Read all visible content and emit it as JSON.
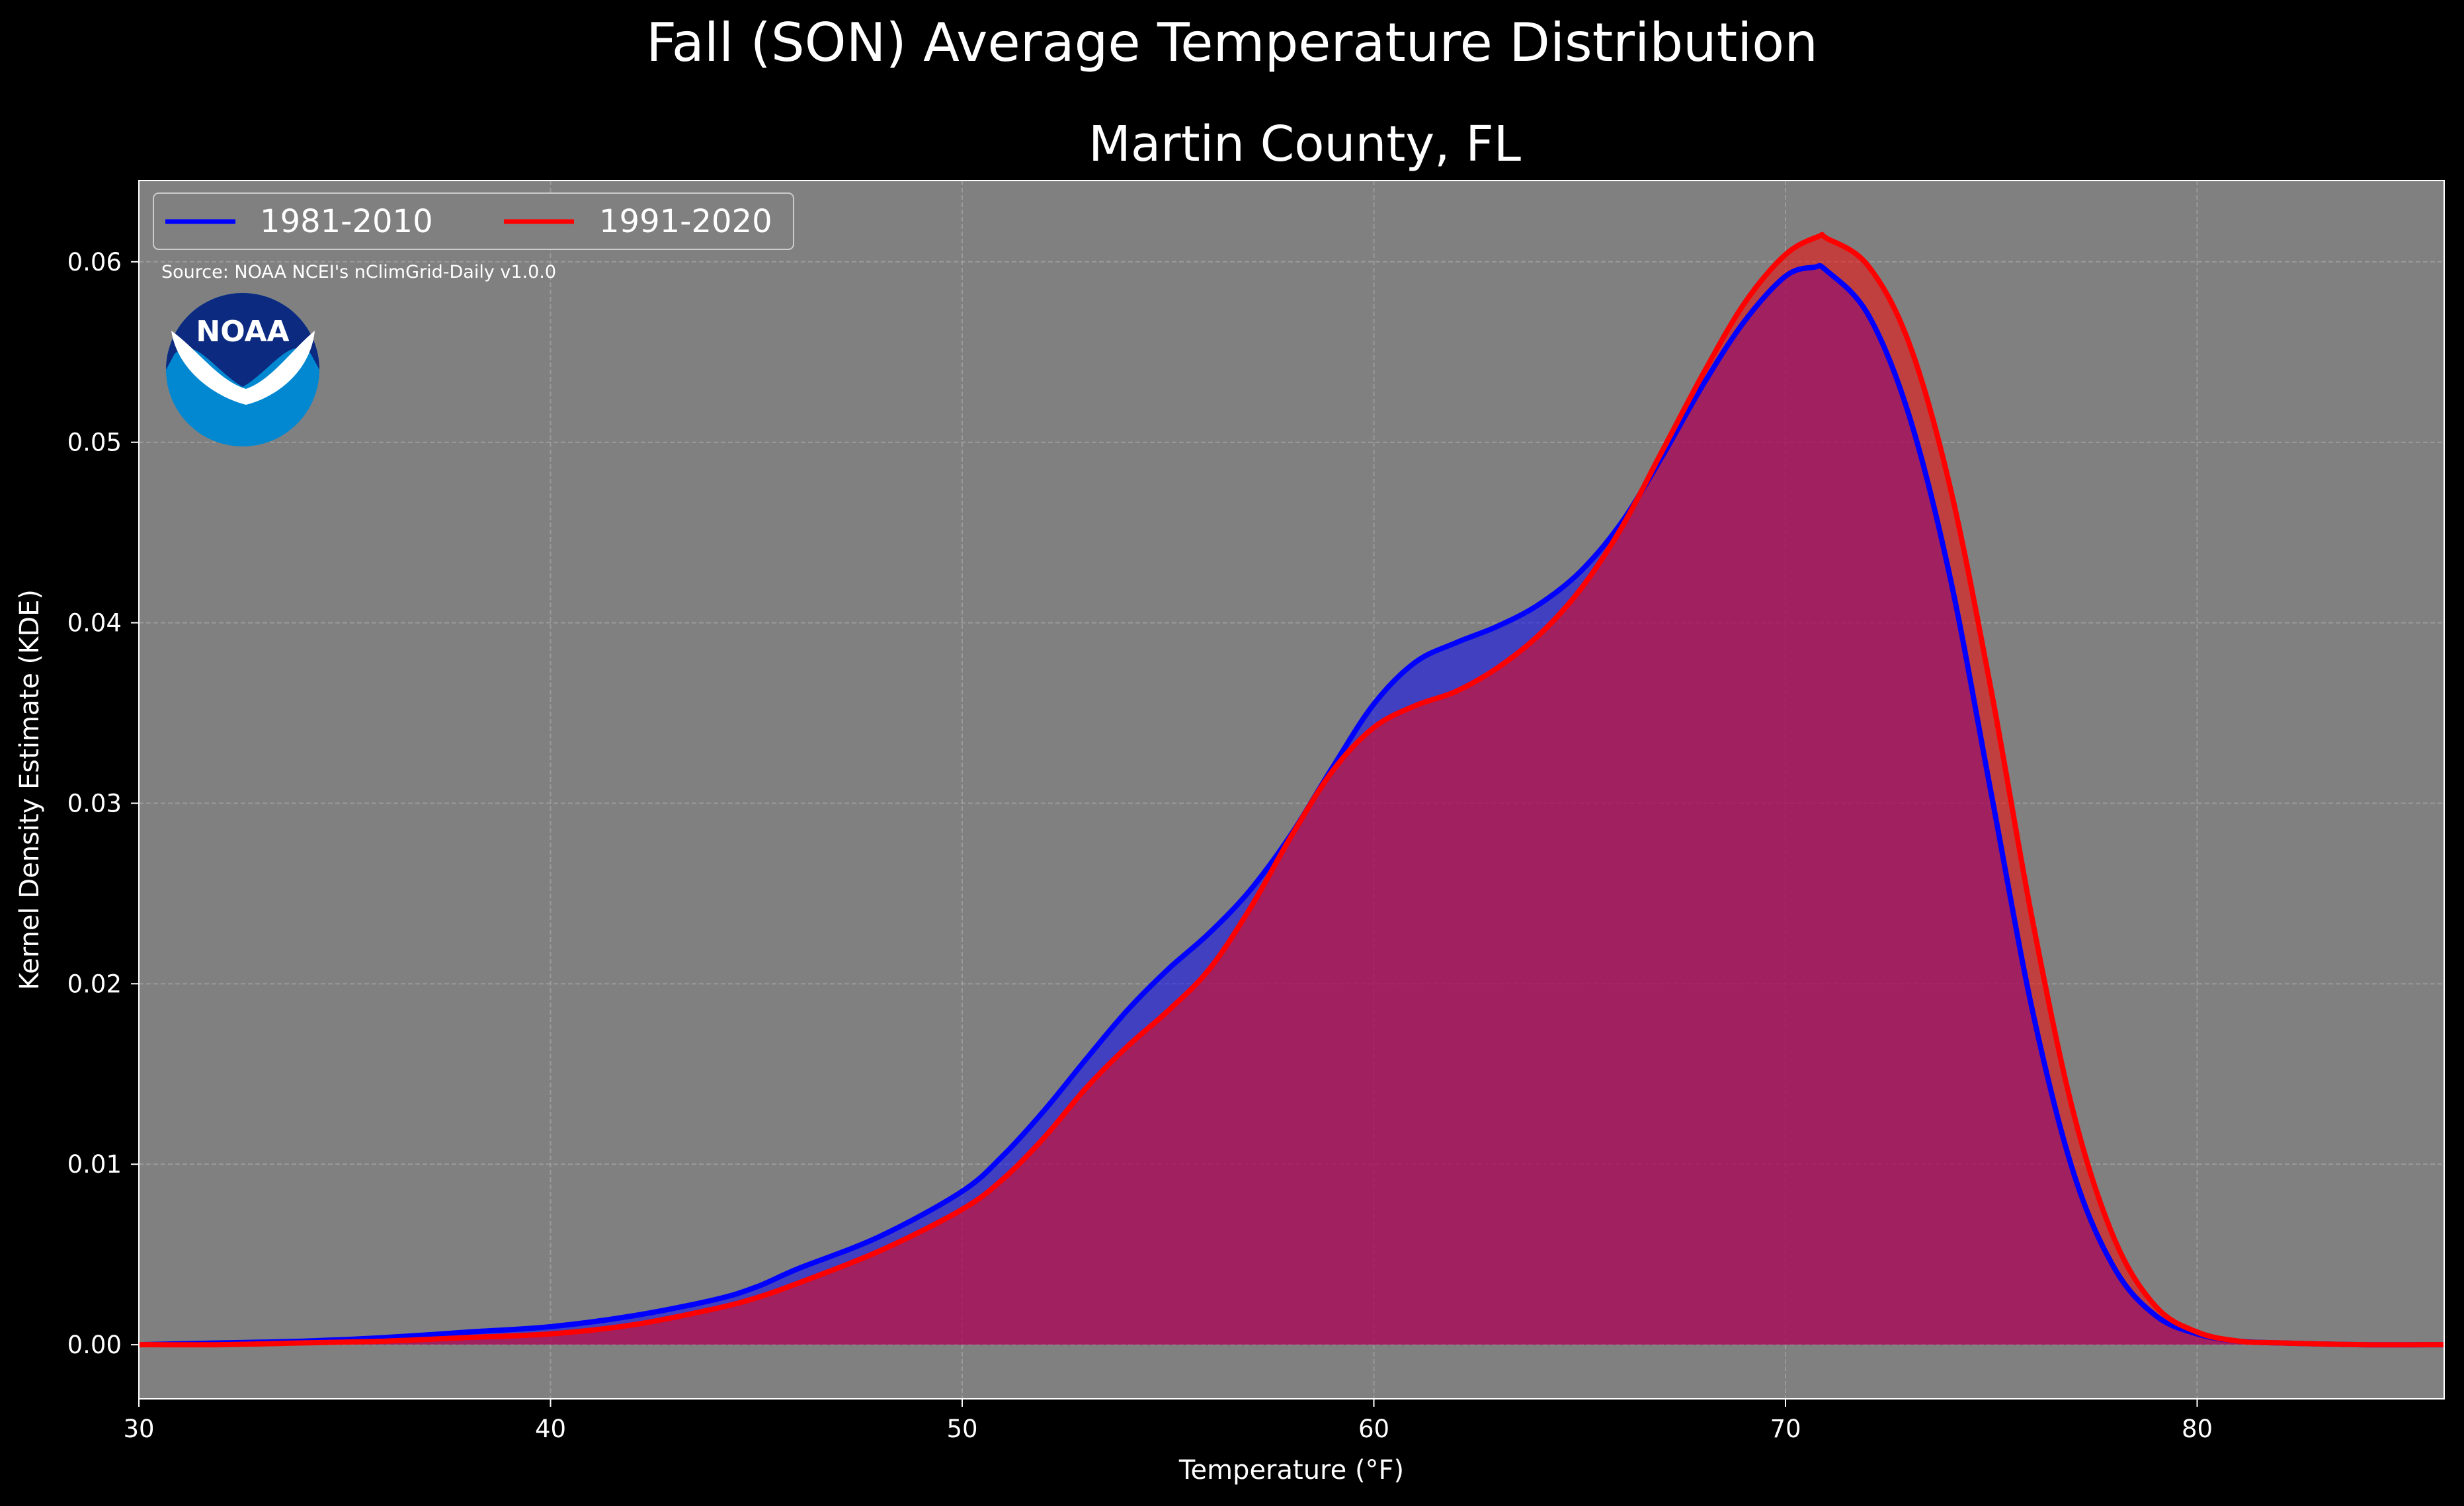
{
  "colors": {
    "figure_background": "#000000",
    "plot_background": "#808080",
    "series_1981_2010": "#0000ff",
    "series_1991_2020": "#ff0000",
    "noaa_dark_blue": "#0b2a80",
    "noaa_light_blue": "#0288d1"
  },
  "logo": {
    "icon": "noaa-logo",
    "text": "NOAA"
  },
  "chart_data": {
    "type": "area",
    "title": "Fall (SON) Average Temperature Distribution",
    "subtitle": "Martin County, FL",
    "xlabel": "Temperature (°F)",
    "ylabel": "Kernel Density Estimate (KDE)",
    "xlim": [
      30,
      86
    ],
    "ylim": [
      -0.003,
      0.0645
    ],
    "xticks": [
      30,
      40,
      50,
      60,
      70,
      80
    ],
    "yticks": [
      0.0,
      0.01,
      0.02,
      0.03,
      0.04,
      0.05,
      0.06
    ],
    "ytick_labels": [
      "0.00",
      "0.01",
      "0.02",
      "0.03",
      "0.04",
      "0.05",
      "0.06"
    ],
    "grid": true,
    "legend_position": "top-left",
    "annotation": "Source: NOAA NCEI's nClimGrid-Daily v1.0.0",
    "series": [
      {
        "name": "1981-2010",
        "color": "#0000ff",
        "x": [
          30,
          32,
          34,
          36,
          38,
          40,
          42,
          44,
          45,
          46,
          48,
          50,
          51,
          52,
          53,
          54,
          55,
          56,
          57,
          58,
          59,
          60,
          61,
          62,
          63,
          64,
          65,
          66,
          67,
          68,
          69,
          70,
          70.7,
          71,
          72,
          73,
          74,
          75,
          76,
          77,
          78,
          79,
          80,
          81,
          82,
          84,
          86
        ],
        "y": [
          0.0,
          0.0001,
          0.0002,
          0.0004,
          0.0007,
          0.001,
          0.0016,
          0.0025,
          0.0032,
          0.0042,
          0.006,
          0.0085,
          0.0105,
          0.013,
          0.0158,
          0.0185,
          0.0208,
          0.0228,
          0.0252,
          0.0283,
          0.032,
          0.0355,
          0.0378,
          0.0389,
          0.0398,
          0.041,
          0.0428,
          0.0455,
          0.0492,
          0.0532,
          0.0567,
          0.0592,
          0.0597,
          0.0595,
          0.0571,
          0.0515,
          0.0425,
          0.0305,
          0.0185,
          0.0095,
          0.0042,
          0.0016,
          0.0006,
          0.0002,
          0.0001,
          0.0,
          0.0
        ]
      },
      {
        "name": "1991-2020",
        "color": "#ff0000",
        "x": [
          30,
          32,
          34,
          36,
          38,
          40,
          42,
          44,
          45,
          46,
          48,
          50,
          51,
          52,
          53,
          54,
          55,
          56,
          57,
          58,
          59,
          60,
          61,
          62,
          63,
          64,
          65,
          66,
          67,
          68,
          69,
          70,
          70.8,
          71,
          72,
          73,
          74,
          75,
          76,
          77,
          78,
          79,
          80,
          81,
          82,
          84,
          86
        ],
        "y": [
          0.0,
          0.0,
          0.0001,
          0.0002,
          0.0004,
          0.0006,
          0.0011,
          0.002,
          0.0026,
          0.0034,
          0.0052,
          0.0075,
          0.0092,
          0.0115,
          0.0142,
          0.0165,
          0.0185,
          0.0208,
          0.0242,
          0.0282,
          0.0318,
          0.0342,
          0.0354,
          0.0362,
          0.0375,
          0.0393,
          0.0418,
          0.0452,
          0.0495,
          0.0538,
          0.0577,
          0.0604,
          0.0614,
          0.0613,
          0.0598,
          0.0555,
          0.0475,
          0.0362,
          0.0235,
          0.0128,
          0.0058,
          0.0021,
          0.0007,
          0.0002,
          0.0001,
          0.0,
          0.0
        ]
      }
    ]
  }
}
